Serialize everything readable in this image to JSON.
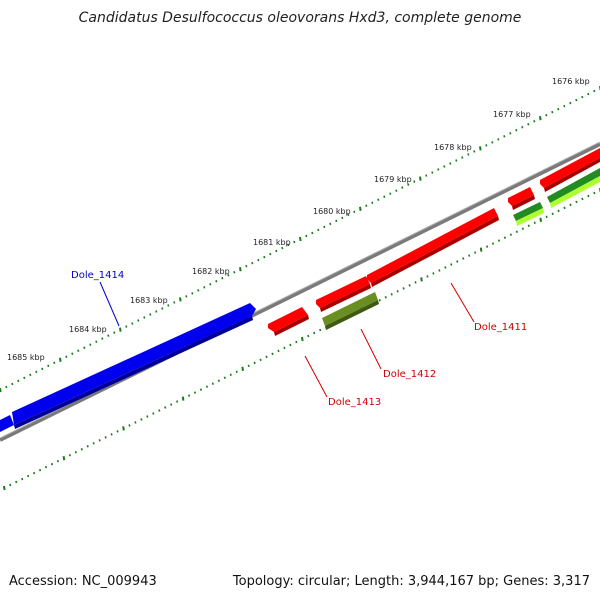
{
  "title": "Candidatus Desulfococcus oleovorans Hxd3, complete genome",
  "accession": "Accession: NC_009943",
  "summary": "Topology: circular; Length: 3,944,167 bp; Genes: 3,317",
  "colors": {
    "forward_gene": "#ff0000",
    "reverse_gene": "#0000ff",
    "olive_feature": "#6b8e23",
    "green_feature": "#228b22",
    "lime_feature": "#adff2f",
    "backbone": "#808080",
    "tick": "#1a7a1a"
  },
  "scale_labels": [
    "1676 kbp",
    "1677 kbp",
    "1678 kbp",
    "1679 kbp",
    "1680 kbp",
    "1681 kbp",
    "1682 kbp",
    "1683 kbp",
    "1684 kbp",
    "1685 kbp"
  ],
  "gene_labels": [
    {
      "text": "Dole_1414",
      "color": "#0000cc"
    },
    {
      "text": "Dole_1411",
      "color": "#cc0000"
    },
    {
      "text": "Dole_1412",
      "color": "#cc0000"
    },
    {
      "text": "Dole_1413",
      "color": "#cc0000"
    }
  ]
}
